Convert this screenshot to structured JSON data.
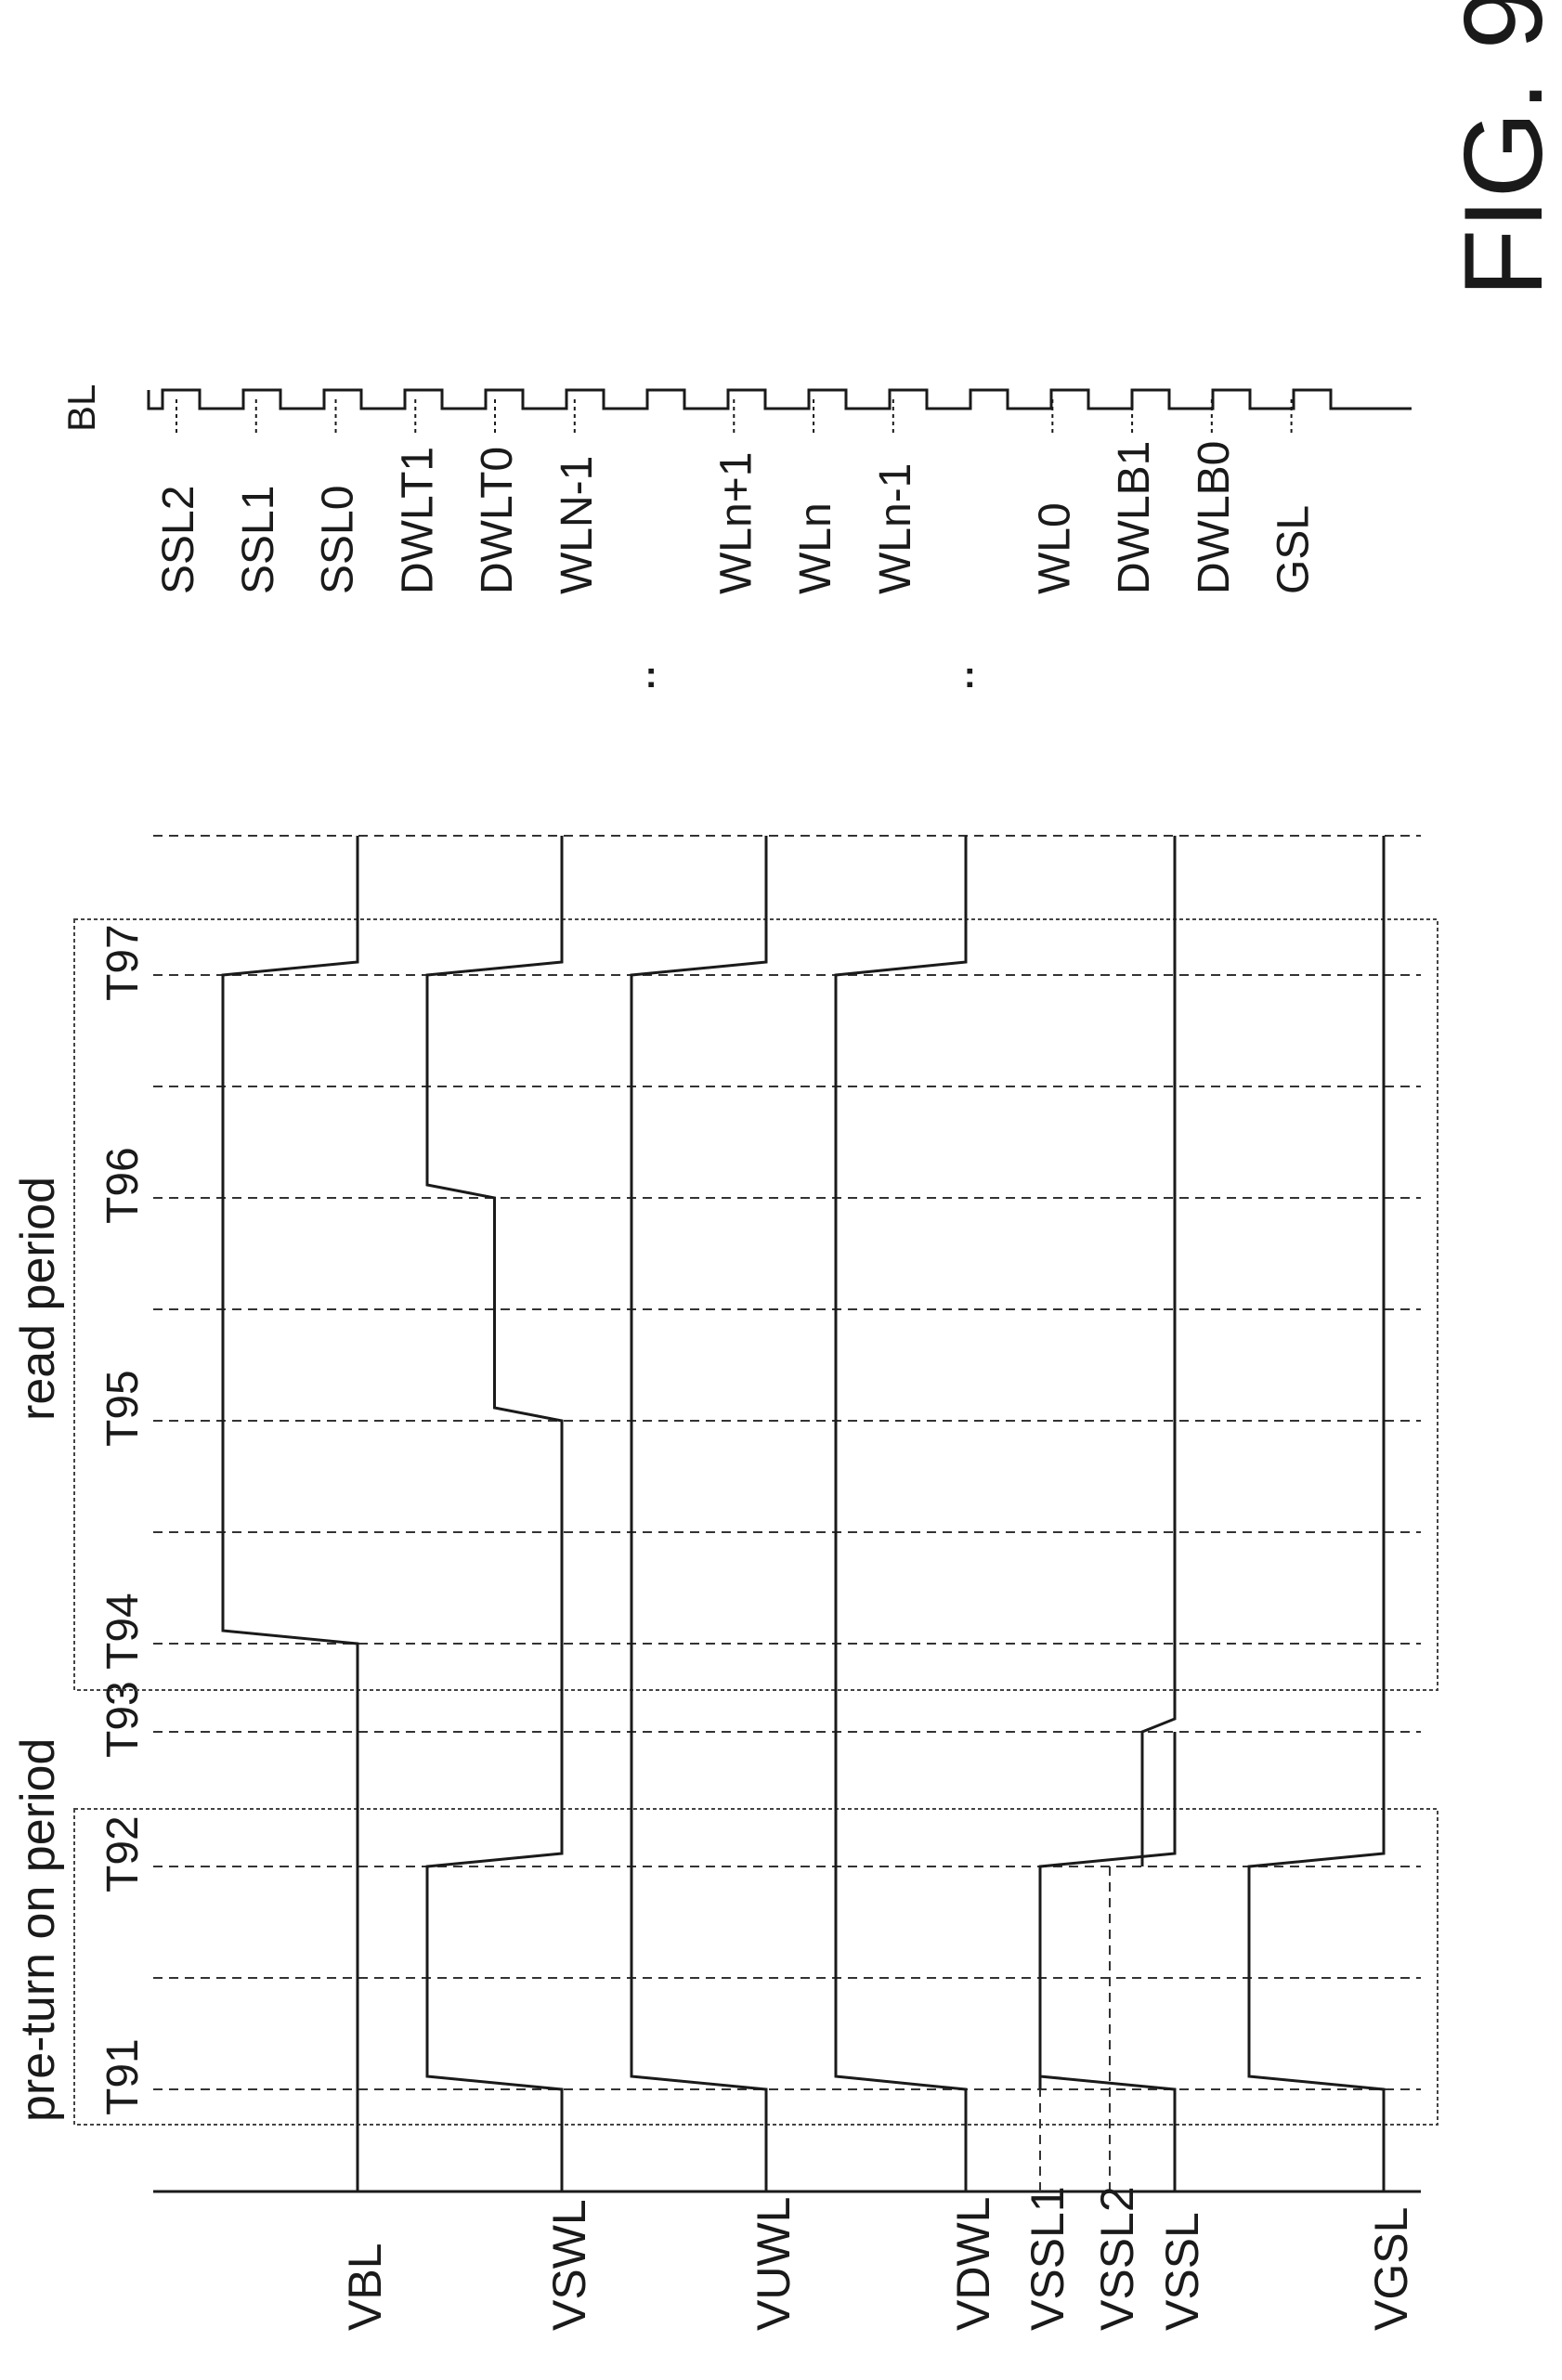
{
  "figure_label": "FIG. 9",
  "period_labels": {
    "pre_turn_on": "pre-turn on period",
    "read": "read period"
  },
  "time_markers": [
    "T91",
    "T92",
    "T93",
    "T94",
    "T95",
    "T96",
    "T97"
  ],
  "signals": [
    {
      "name": "VBL",
      "levels": [
        [
          "start",
          0
        ],
        [
          "T94",
          0
        ],
        [
          "T94",
          1
        ],
        [
          "T97",
          1
        ],
        [
          "T97",
          0
        ],
        [
          "end",
          0
        ]
      ]
    },
    {
      "name": "VSWL",
      "levels": [
        [
          "start",
          0
        ],
        [
          "T91",
          0
        ],
        [
          "T91",
          1
        ],
        [
          "T92",
          1
        ],
        [
          "T92",
          0
        ],
        [
          "T95",
          0
        ],
        [
          "T95",
          0.5
        ],
        [
          "T96",
          0.5
        ],
        [
          "T96",
          1
        ],
        [
          "T97",
          1
        ],
        [
          "T97",
          0
        ],
        [
          "end",
          0
        ]
      ]
    },
    {
      "name": "VUWL",
      "levels": [
        [
          "start",
          0
        ],
        [
          "T91",
          0
        ],
        [
          "T91",
          1
        ],
        [
          "T97",
          1
        ],
        [
          "T97",
          0
        ],
        [
          "end",
          0
        ]
      ]
    },
    {
      "name": "VDWL",
      "levels": [
        [
          "start",
          0
        ],
        [
          "T91",
          0
        ],
        [
          "T91",
          1
        ],
        [
          "T97",
          1
        ],
        [
          "T97",
          0
        ],
        [
          "end",
          0
        ]
      ]
    },
    {
      "name": "VSSL1",
      "levels": []
    },
    {
      "name": "VSSL2",
      "levels": []
    },
    {
      "name": "VSSL",
      "levels": []
    },
    {
      "name": "VGSL",
      "levels": [
        [
          "start",
          0
        ],
        [
          "T91",
          0
        ],
        [
          "T91",
          1
        ],
        [
          "T92",
          1
        ],
        [
          "T92",
          0
        ],
        [
          "end",
          0
        ]
      ]
    }
  ],
  "ssl_waveforms": {
    "VSSL1": [
      [
        "T91",
        1
      ],
      [
        "T92",
        1
      ],
      [
        "T92",
        0
      ],
      [
        "T93",
        0
      ]
    ],
    "VSSL2": [
      [
        "T92",
        0.5
      ],
      [
        "T93",
        0.5
      ],
      [
        "T93",
        0
      ],
      [
        "end",
        0
      ]
    ]
  },
  "bl_label": "BL",
  "string_nodes": [
    "SSL2",
    "SSL1",
    "SSL0",
    "DWLT1",
    "DWLT0",
    "WLN-1",
    ":",
    "WLn+1",
    "WLn",
    "WLn-1",
    ":",
    "WL0",
    "DWLB1",
    "DWLB0",
    "GSL"
  ]
}
